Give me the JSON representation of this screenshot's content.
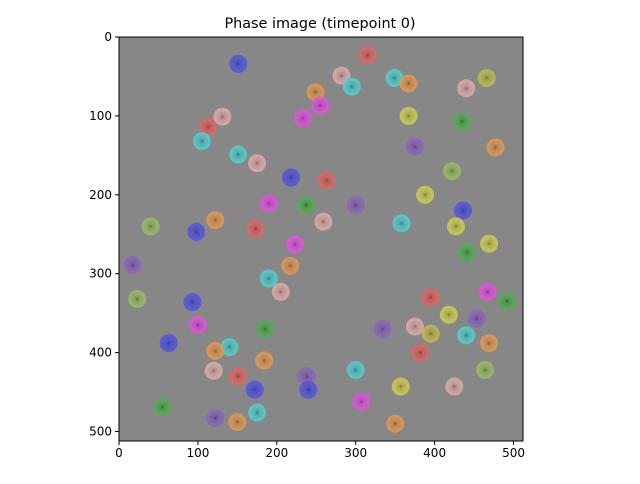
{
  "chart_data": {
    "type": "image",
    "title": "Phase image (timepoint 0)",
    "background": "#878787",
    "xlim": [
      0,
      512
    ],
    "ylim": [
      512,
      0
    ],
    "xticks": [
      0,
      100,
      200,
      300,
      400,
      500
    ],
    "yticks": [
      0,
      100,
      200,
      300,
      400,
      500
    ],
    "cells": [
      {
        "x": 151,
        "y": 34,
        "color": "#5555dd"
      },
      {
        "x": 315,
        "y": 23,
        "color": "#dd6666"
      },
      {
        "x": 282,
        "y": 49,
        "color": "#ddaaaa"
      },
      {
        "x": 295,
        "y": 63,
        "color": "#55cccc"
      },
      {
        "x": 349,
        "y": 52,
        "color": "#55cccc"
      },
      {
        "x": 367,
        "y": 59,
        "color": "#dd9955"
      },
      {
        "x": 440,
        "y": 65,
        "color": "#ddaaaa"
      },
      {
        "x": 466,
        "y": 52,
        "color": "#bbbb55"
      },
      {
        "x": 249,
        "y": 70,
        "color": "#dd9955"
      },
      {
        "x": 255,
        "y": 87,
        "color": "#dd55dd"
      },
      {
        "x": 367,
        "y": 100,
        "color": "#cccc55"
      },
      {
        "x": 131,
        "y": 101,
        "color": "#ddaaaa"
      },
      {
        "x": 113,
        "y": 114,
        "color": "#dd6666"
      },
      {
        "x": 105,
        "y": 132,
        "color": "#55cccc"
      },
      {
        "x": 151,
        "y": 149,
        "color": "#55cccc"
      },
      {
        "x": 175,
        "y": 160,
        "color": "#ddaaaa"
      },
      {
        "x": 375,
        "y": 139,
        "color": "#8866bb"
      },
      {
        "x": 435,
        "y": 107,
        "color": "#55aa55"
      },
      {
        "x": 477,
        "y": 140,
        "color": "#dd9955"
      },
      {
        "x": 422,
        "y": 170,
        "color": "#99bb66"
      },
      {
        "x": 233,
        "y": 103,
        "color": "#dd55dd"
      },
      {
        "x": 218,
        "y": 178,
        "color": "#5555dd"
      },
      {
        "x": 263,
        "y": 182,
        "color": "#dd6666"
      },
      {
        "x": 300,
        "y": 213,
        "color": "#8866bb"
      },
      {
        "x": 237,
        "y": 213,
        "color": "#55aa55"
      },
      {
        "x": 190,
        "y": 211,
        "color": "#dd55dd"
      },
      {
        "x": 388,
        "y": 200,
        "color": "#cccc55"
      },
      {
        "x": 436,
        "y": 220,
        "color": "#5555dd"
      },
      {
        "x": 122,
        "y": 232,
        "color": "#dd9955"
      },
      {
        "x": 259,
        "y": 234,
        "color": "#ddaaaa"
      },
      {
        "x": 40,
        "y": 240,
        "color": "#99bb66"
      },
      {
        "x": 98,
        "y": 247,
        "color": "#5555dd"
      },
      {
        "x": 173,
        "y": 243,
        "color": "#dd6666"
      },
      {
        "x": 358,
        "y": 236,
        "color": "#55cccc"
      },
      {
        "x": 427,
        "y": 240,
        "color": "#cccc55"
      },
      {
        "x": 469,
        "y": 262,
        "color": "#cccc55"
      },
      {
        "x": 441,
        "y": 273,
        "color": "#55aa55"
      },
      {
        "x": 223,
        "y": 263,
        "color": "#dd55dd"
      },
      {
        "x": 17,
        "y": 289,
        "color": "#8866bb"
      },
      {
        "x": 217,
        "y": 290,
        "color": "#dd9955"
      },
      {
        "x": 190,
        "y": 306,
        "color": "#55cccc"
      },
      {
        "x": 205,
        "y": 323,
        "color": "#ddaaaa"
      },
      {
        "x": 467,
        "y": 323,
        "color": "#dd55dd"
      },
      {
        "x": 395,
        "y": 330,
        "color": "#dd6666"
      },
      {
        "x": 23,
        "y": 332,
        "color": "#99bb66"
      },
      {
        "x": 492,
        "y": 335,
        "color": "#55aa55"
      },
      {
        "x": 93,
        "y": 336,
        "color": "#5555dd"
      },
      {
        "x": 418,
        "y": 352,
        "color": "#cccc55"
      },
      {
        "x": 453,
        "y": 357,
        "color": "#8866bb"
      },
      {
        "x": 100,
        "y": 365,
        "color": "#dd55dd"
      },
      {
        "x": 185,
        "y": 370,
        "color": "#55aa55"
      },
      {
        "x": 334,
        "y": 370,
        "color": "#8866bb"
      },
      {
        "x": 375,
        "y": 367,
        "color": "#ddaaaa"
      },
      {
        "x": 395,
        "y": 376,
        "color": "#bbbb55"
      },
      {
        "x": 440,
        "y": 378,
        "color": "#55cccc"
      },
      {
        "x": 63,
        "y": 388,
        "color": "#5555dd"
      },
      {
        "x": 140,
        "y": 393,
        "color": "#55cccc"
      },
      {
        "x": 122,
        "y": 398,
        "color": "#dd9955"
      },
      {
        "x": 382,
        "y": 400,
        "color": "#dd6666"
      },
      {
        "x": 469,
        "y": 388,
        "color": "#dd9955"
      },
      {
        "x": 184,
        "y": 410,
        "color": "#dd9955"
      },
      {
        "x": 300,
        "y": 422,
        "color": "#55cccc"
      },
      {
        "x": 464,
        "y": 422,
        "color": "#99bb66"
      },
      {
        "x": 120,
        "y": 423,
        "color": "#ddaaaa"
      },
      {
        "x": 151,
        "y": 430,
        "color": "#dd6666"
      },
      {
        "x": 238,
        "y": 430,
        "color": "#8866bb"
      },
      {
        "x": 425,
        "y": 443,
        "color": "#ddaaaa"
      },
      {
        "x": 172,
        "y": 447,
        "color": "#5555dd"
      },
      {
        "x": 240,
        "y": 447,
        "color": "#5555dd"
      },
      {
        "x": 357,
        "y": 443,
        "color": "#cccc55"
      },
      {
        "x": 55,
        "y": 469,
        "color": "#55aa55"
      },
      {
        "x": 307,
        "y": 462,
        "color": "#dd55dd"
      },
      {
        "x": 175,
        "y": 476,
        "color": "#55cccc"
      },
      {
        "x": 122,
        "y": 483,
        "color": "#8866bb"
      },
      {
        "x": 150,
        "y": 488,
        "color": "#dd9955"
      },
      {
        "x": 350,
        "y": 490,
        "color": "#dd9955"
      }
    ]
  }
}
